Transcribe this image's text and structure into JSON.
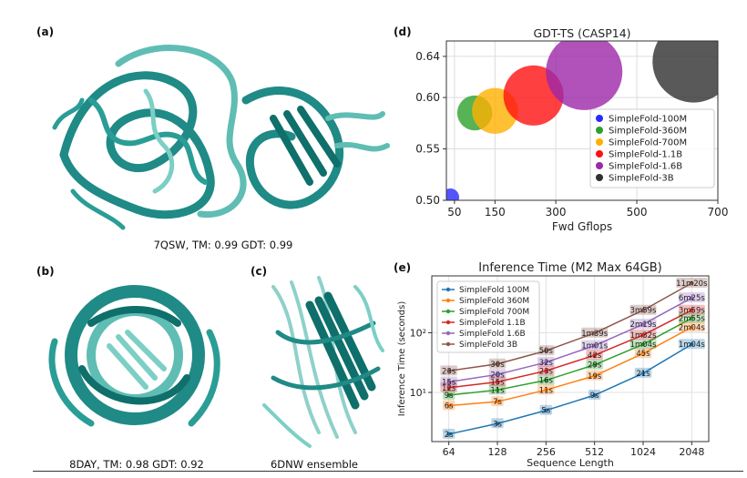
{
  "panels": {
    "a": {
      "label": "(a)",
      "caption": "7QSW, TM: 0.99 GDT: 0.99"
    },
    "b": {
      "label": "(b)",
      "caption": "8DAY, TM: 0.98 GDT: 0.92"
    },
    "c": {
      "label": "(c)",
      "caption": "6DNW ensemble"
    },
    "d": {
      "label": "(d)"
    },
    "e": {
      "label": "(e)"
    }
  },
  "colors": {
    "protein": "#1f8a86",
    "protein_light": "#5fbdb4"
  },
  "chart_data": [
    {
      "type": "scatter",
      "title": "GDT-TS (CASP14)",
      "xlabel": "Fwd Gflops",
      "ylabel": "",
      "xlim": [
        30,
        700
      ],
      "ylim": [
        0.5,
        0.655
      ],
      "xticks": [
        50,
        150,
        300,
        500,
        700
      ],
      "xtick_labels": [
        "50",
        "150",
        "300",
        "500",
        "700"
      ],
      "yticks": [
        0.5,
        0.55,
        0.6,
        0.64
      ],
      "ytick_labels": [
        "0.50",
        "0.55",
        "0.60",
        "0.64"
      ],
      "grid": true,
      "legend_position": "right",
      "series": [
        {
          "name": "SimpleFold-100M",
          "color": "#2a2aff",
          "x": 40,
          "y": 0.503,
          "size": 0.16
        },
        {
          "name": "SimpleFold-360M",
          "color": "#2ca02c",
          "x": 100,
          "y": 0.585,
          "size": 0.32
        },
        {
          "name": "SimpleFold-700M",
          "color": "#ffb000",
          "x": 150,
          "y": 0.587,
          "size": 0.42
        },
        {
          "name": "SimpleFold-1.1B",
          "color": "#ff1010",
          "x": 245,
          "y": 0.602,
          "size": 0.55
        },
        {
          "name": "SimpleFold-1.6B",
          "color": "#9c27a8",
          "x": 370,
          "y": 0.625,
          "size": 0.7
        },
        {
          "name": "SimpleFold-3B",
          "color": "#303030",
          "x": 640,
          "y": 0.635,
          "size": 0.75
        }
      ]
    },
    {
      "type": "line",
      "title": "Inference Time (M2 Max 64GB)",
      "xlabel": "Sequence Length",
      "ylabel": "Inference Time (seconds)",
      "xscale": "log2",
      "yscale": "log10",
      "x": [
        64,
        128,
        256,
        512,
        1024,
        2048
      ],
      "xtick_labels": [
        "64",
        "128",
        "256",
        "512",
        "1024",
        "2048"
      ],
      "yticks": [
        10,
        100
      ],
      "ytick_labels": [
        "10¹",
        "10²"
      ],
      "ylim": [
        1.5,
        900
      ],
      "grid": true,
      "legend_position": "upper left",
      "series": [
        {
          "name": "SimpleFold 100M",
          "color": "#1f77b4",
          "values": [
            2,
            3,
            5,
            9,
            21,
            64
          ],
          "labels": [
            "2s",
            "3s",
            "5s",
            "9s",
            "21s",
            "1m04s"
          ]
        },
        {
          "name": "SimpleFold 360M",
          "color": "#ff7f0e",
          "values": [
            6,
            7,
            11,
            19,
            45,
            124
          ],
          "labels": [
            "6s",
            "7s",
            "11s",
            "19s",
            "45s",
            "2m04s"
          ]
        },
        {
          "name": "SimpleFold 700M",
          "color": "#2ca02c",
          "values": [
            9,
            11,
            16,
            29,
            64,
            175
          ],
          "labels": [
            "9s",
            "11s",
            "16s",
            "29s",
            "1m04s",
            "2m55s"
          ]
        },
        {
          "name": "SimpleFold 1.1B",
          "color": "#d62728",
          "values": [
            12,
            15,
            23,
            42,
            92,
            239
          ],
          "labels": [
            "12s",
            "15s",
            "23s",
            "42s",
            "1m32s",
            "3m59s"
          ]
        },
        {
          "name": "SimpleFold 1.6B",
          "color": "#9467bd",
          "values": [
            15,
            20,
            32,
            61,
            139,
            385
          ],
          "labels": [
            "15s",
            "20s",
            "32s",
            "1m01s",
            "2m19s",
            "6m25s"
          ]
        },
        {
          "name": "SimpleFold 3B",
          "color": "#8c564b",
          "values": [
            23,
            30,
            50,
            99,
            239,
            680
          ],
          "labels": [
            "23s",
            "30s",
            "50s",
            "1m39s",
            "3m59s",
            "11m20s"
          ]
        }
      ]
    }
  ]
}
